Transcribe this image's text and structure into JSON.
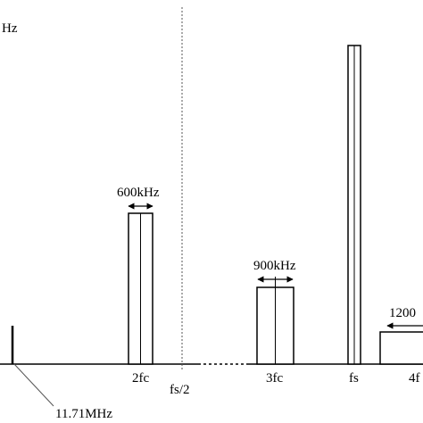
{
  "labels": {
    "corner": "Hz",
    "bw_2fc": "600kHz",
    "bw_3fc": "900kHz",
    "bw_4fc": "1200",
    "tick_2fc": "2fc",
    "tick_fs_half": "fs/2",
    "tick_3fc": "3fc",
    "tick_fs": "fs",
    "tick_4fc": "4f",
    "annotation": "11.71MHz"
  }
}
